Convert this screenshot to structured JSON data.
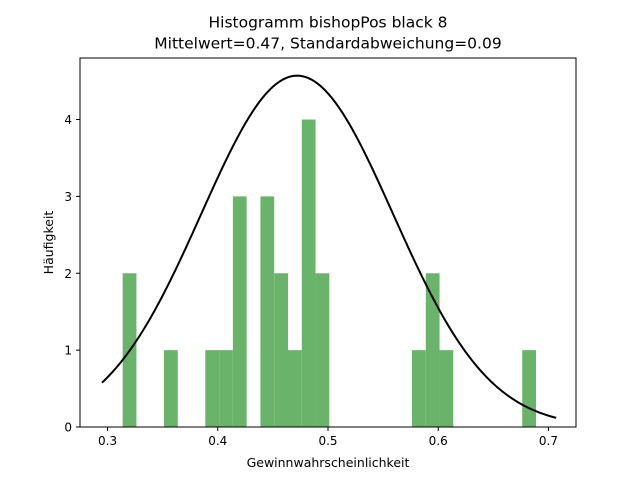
{
  "chart_data": {
    "type": "bar",
    "title": "Histogramm bishopPos black 8",
    "subtitle": "Mittelwert=0.47, Standardabweichung=0.09",
    "xlabel": "Gewinnwahrscheinlichkeit",
    "ylabel": "Häufigkeit",
    "xlim": [
      0.275,
      0.725
    ],
    "ylim": [
      0,
      4.8
    ],
    "x_ticks": [
      0.3,
      0.4,
      0.5,
      0.6,
      0.7
    ],
    "y_ticks": [
      0,
      1,
      2,
      3,
      4
    ],
    "bar_color": "#6ab36a",
    "curve_color": "#000000",
    "bins": [
      {
        "x0": 0.3137,
        "x1": 0.3262,
        "count": 2
      },
      {
        "x0": 0.3512,
        "x1": 0.3637,
        "count": 1
      },
      {
        "x0": 0.3887,
        "x1": 0.4012,
        "count": 1
      },
      {
        "x0": 0.4012,
        "x1": 0.4137,
        "count": 1
      },
      {
        "x0": 0.4137,
        "x1": 0.4262,
        "count": 3
      },
      {
        "x0": 0.4387,
        "x1": 0.4512,
        "count": 3
      },
      {
        "x0": 0.4512,
        "x1": 0.4637,
        "count": 2
      },
      {
        "x0": 0.4637,
        "x1": 0.4762,
        "count": 1
      },
      {
        "x0": 0.4762,
        "x1": 0.4887,
        "count": 4
      },
      {
        "x0": 0.4887,
        "x1": 0.5012,
        "count": 2
      },
      {
        "x0": 0.5762,
        "x1": 0.5887,
        "count": 1
      },
      {
        "x0": 0.5887,
        "x1": 0.6012,
        "count": 2
      },
      {
        "x0": 0.6012,
        "x1": 0.6137,
        "count": 1
      },
      {
        "x0": 0.6762,
        "x1": 0.6887,
        "count": 1
      }
    ],
    "curve": {
      "type": "normal-pdf-scaled",
      "mean": 0.472,
      "std": 0.087,
      "peak": 4.57,
      "x_range": [
        0.295,
        0.707
      ]
    },
    "grid": false,
    "legend": "none"
  }
}
